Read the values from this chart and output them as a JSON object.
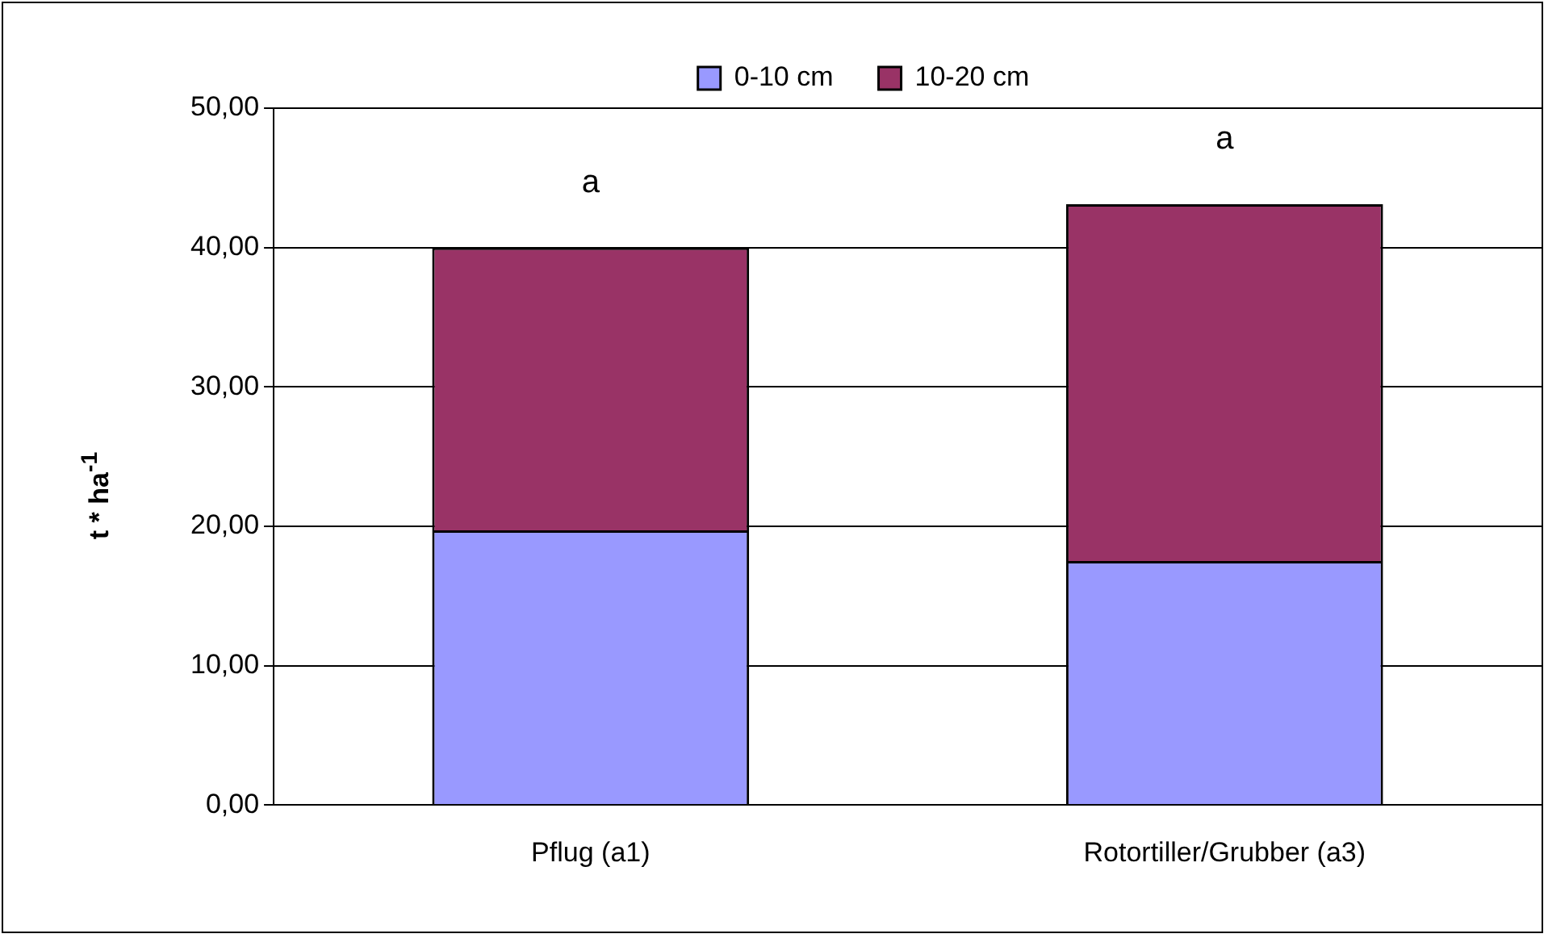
{
  "chart_data": {
    "type": "bar",
    "stacked": true,
    "ylabel": "t * ha$^{-1}$",
    "categories": [
      "Pflug (a1)",
      "Rotortiller/Grubber (a3)"
    ],
    "series": [
      {
        "name": "0-10 cm",
        "color": "#9999ff",
        "values": [
          19.7,
          17.5
        ]
      },
      {
        "name": "10-20 cm",
        "color": "#993366",
        "values": [
          20.3,
          25.6
        ]
      }
    ],
    "ylim": [
      0,
      50
    ],
    "yticks": [
      {
        "value": 0,
        "label": "0,00"
      },
      {
        "value": 10,
        "label": "10,00"
      },
      {
        "value": 20,
        "label": "20,00"
      },
      {
        "value": 30,
        "label": "30,00"
      },
      {
        "value": 40,
        "label": "40,00"
      },
      {
        "value": 50,
        "label": "50,00"
      }
    ],
    "grid": "y",
    "legend": "top",
    "annotations": [
      "a",
      "a"
    ]
  }
}
